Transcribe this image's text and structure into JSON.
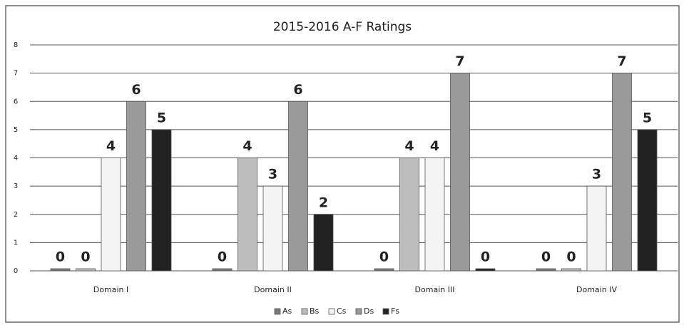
{
  "chart_data": {
    "type": "bar",
    "title": "2015-2016 A-F Ratings",
    "categories": [
      "Domain I",
      "Domain II",
      "Domain III",
      "Domain IV"
    ],
    "series": [
      {
        "name": "As",
        "color": "#7a7a7a",
        "values": [
          0,
          0,
          0,
          0
        ]
      },
      {
        "name": "Bs",
        "color": "#bdbdbd",
        "values": [
          0,
          4,
          4,
          0
        ]
      },
      {
        "name": "Cs",
        "color": "#f4f4f4",
        "values": [
          4,
          3,
          4,
          3
        ]
      },
      {
        "name": "Ds",
        "color": "#9a9a9a",
        "values": [
          6,
          6,
          7,
          7
        ]
      },
      {
        "name": "Fs",
        "color": "#222222",
        "values": [
          5,
          2,
          0,
          5
        ]
      }
    ],
    "ylim": [
      0,
      8
    ],
    "yticks": [
      0,
      1,
      2,
      3,
      4,
      5,
      6,
      7,
      8
    ],
    "grid": true,
    "legend": "bottom"
  }
}
